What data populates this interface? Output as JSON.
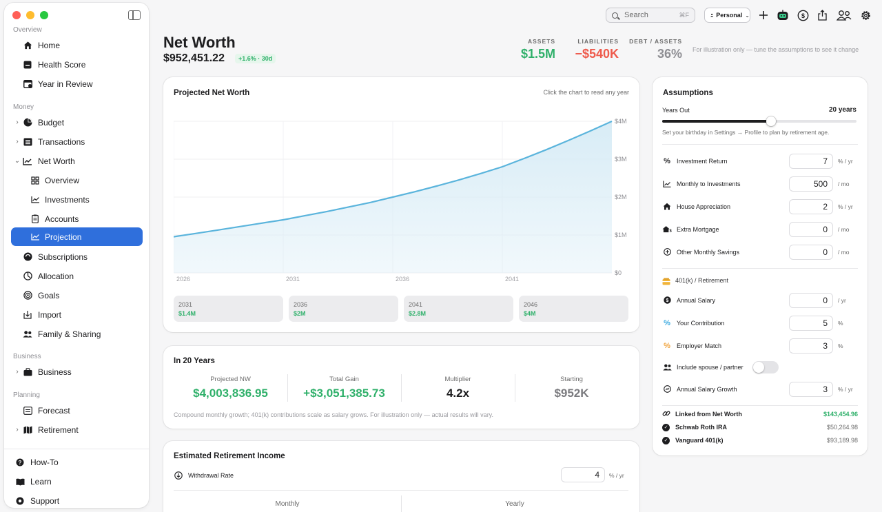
{
  "sidebar": {
    "sections": {
      "overview": "Overview",
      "money": "Money",
      "business": "Business",
      "planning": "Planning"
    },
    "items": [
      {
        "label": "Home",
        "icon": "house-icon"
      },
      {
        "label": "Health Score",
        "icon": "health-score-icon"
      },
      {
        "label": "Year in Review",
        "icon": "calendar-icon"
      },
      {
        "label": "Budget",
        "icon": "pie-chart-icon"
      },
      {
        "label": "Transactions",
        "icon": "list-icon"
      },
      {
        "label": "Net Worth",
        "icon": "line-chart-icon"
      },
      {
        "label": "Overview",
        "icon": "grid-icon"
      },
      {
        "label": "Investments",
        "icon": "trend-icon"
      },
      {
        "label": "Accounts",
        "icon": "clipboard-icon"
      },
      {
        "label": "Projection",
        "icon": "projection-icon"
      },
      {
        "label": "Subscriptions",
        "icon": "subscriptions-icon"
      },
      {
        "label": "Allocation",
        "icon": "allocation-icon"
      },
      {
        "label": "Goals",
        "icon": "target-icon"
      },
      {
        "label": "Import",
        "icon": "import-icon"
      },
      {
        "label": "Family & Sharing",
        "icon": "people-icon"
      },
      {
        "label": "Business",
        "icon": "briefcase-icon"
      },
      {
        "label": "Forecast",
        "icon": "forecast-icon"
      },
      {
        "label": "Retirement",
        "icon": "map-icon"
      }
    ],
    "bottom": [
      {
        "label": "How-To",
        "icon": "question-icon"
      },
      {
        "label": "Learn",
        "icon": "book-icon"
      },
      {
        "label": "Support",
        "icon": "support-icon"
      }
    ]
  },
  "toolbar": {
    "search_placeholder": "Search",
    "search_shortcut": "⌘F",
    "profile": "Personal"
  },
  "header": {
    "title": "Net Worth",
    "value": "$952,451.22",
    "change_badge": "+1.6% · 30d",
    "assets_label": "ASSETS",
    "assets_value": "$1.5M",
    "liabilities_label": "LIABILITIES",
    "liabilities_value": "−$540K",
    "debt_label": "DEBT / ASSETS",
    "debt_value": "36%",
    "note": "For illustration only — tune the assumptions to see it change"
  },
  "projection": {
    "title": "Projected Net Worth",
    "hint": "Click the chart to read any year",
    "milestones": [
      {
        "year": "2031",
        "amount": "$1.4M"
      },
      {
        "year": "2036",
        "amount": "$2M"
      },
      {
        "year": "2041",
        "amount": "$2.8M"
      },
      {
        "year": "2046",
        "amount": "$4M"
      }
    ]
  },
  "chart_data": {
    "type": "area",
    "x": [
      2026,
      2027,
      2028,
      2029,
      2030,
      2031,
      2032,
      2033,
      2034,
      2035,
      2036,
      2037,
      2038,
      2039,
      2040,
      2041,
      2042,
      2043,
      2044,
      2045,
      2046
    ],
    "values": [
      0.952,
      1.04,
      1.13,
      1.22,
      1.31,
      1.4,
      1.51,
      1.62,
      1.74,
      1.86,
      2.0,
      2.14,
      2.29,
      2.45,
      2.62,
      2.8,
      3.02,
      3.25,
      3.49,
      3.74,
      4.0
    ],
    "y_unit": "millions of dollars",
    "xticks": [
      "2026",
      "2031",
      "2036",
      "2041"
    ],
    "yticks": [
      "$4M",
      "$3M",
      "$2M",
      "$1M",
      "$0"
    ],
    "ylim": [
      0,
      4
    ],
    "grid": true,
    "colors": {
      "line": "#5ab4dc",
      "fill": "#d8ecf6"
    }
  },
  "in_years": {
    "title": "In 20 Years",
    "metrics": [
      {
        "label": "Projected NW",
        "value": "$4,003,836.95",
        "color": "#2fb06a"
      },
      {
        "label": "Total Gain",
        "value": "+$3,051,385.73",
        "color": "#2fb06a"
      },
      {
        "label": "Multiplier",
        "value": "4.2x",
        "color": "#1d1d1f"
      },
      {
        "label": "Starting",
        "value": "$952K",
        "color": "#7a7a7e"
      }
    ],
    "footnote": "Compound monthly growth; 401(k) contributions scale as salary grows. For illustration only — actual results will vary."
  },
  "retirement_income": {
    "title": "Estimated Retirement Income",
    "withdrawal_label": "Withdrawal Rate",
    "withdrawal_value": "4",
    "withdrawal_unit": "% / yr",
    "col_monthly": "Monthly",
    "col_yearly": "Yearly"
  },
  "assumptions": {
    "title": "Assumptions",
    "years_label": "Years Out",
    "years_value": "20 years",
    "years_slider": 0.56,
    "years_hint": "Set your birthday in Settings → Profile to plan by retirement age.",
    "rows": [
      {
        "label": "Investment Return",
        "value": "7",
        "unit": "% / yr",
        "icon": "percent-icon"
      },
      {
        "label": "Monthly to Investments",
        "value": "500",
        "unit": "/ mo",
        "icon": "chart-line-icon"
      },
      {
        "label": "House Appreciation",
        "value": "2",
        "unit": "% / yr",
        "icon": "house-icon"
      },
      {
        "label": "Extra Mortgage",
        "value": "0",
        "unit": "/ mo",
        "icon": "house-dollar-icon"
      },
      {
        "label": "Other Monthly Savings",
        "value": "0",
        "unit": "/ mo",
        "icon": "plus-circle-icon"
      }
    ],
    "retirement_section": "401(k) / Retirement",
    "retirement_rows": [
      {
        "label": "Annual Salary",
        "value": "0",
        "unit": "/ yr",
        "icon": "dollar-circle-icon"
      },
      {
        "label": "Your Contribution",
        "value": "5",
        "unit": "%",
        "icon": "percent-icon"
      },
      {
        "label": "Employer Match",
        "value": "3",
        "unit": "%",
        "icon": "percent-icon"
      }
    ],
    "spouse_label": "Include spouse / partner",
    "spouse_on": false,
    "salary_growth_label": "Annual Salary Growth",
    "salary_growth_value": "3",
    "salary_growth_unit": "% / yr",
    "linked_label": "Linked from Net Worth",
    "linked_total": "$143,454.96",
    "linked_accounts": [
      {
        "name": "Schwab Roth IRA",
        "amount": "$50,264.98"
      },
      {
        "name": "Vanguard 401(k)",
        "amount": "$93,189.98"
      }
    ]
  }
}
